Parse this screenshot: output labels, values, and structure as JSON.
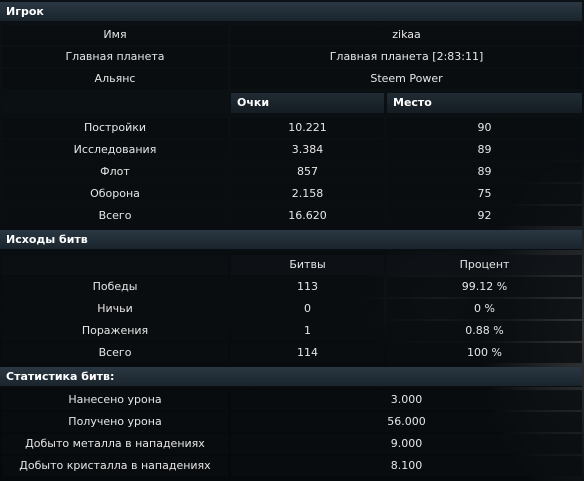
{
  "player_section": {
    "title": "Игрок",
    "rows": [
      {
        "label": "Имя",
        "value": "zikaa"
      },
      {
        "label": "Главная планета",
        "value": "Главная планета [2:83:11]"
      },
      {
        "label": "Альянс",
        "value": "Steem Power"
      }
    ]
  },
  "points_table": {
    "headers": {
      "points": "Очки",
      "place": "Место"
    },
    "rows": [
      {
        "label": "Постройки",
        "points": "10.221",
        "place": "90"
      },
      {
        "label": "Исследования",
        "points": "3.384",
        "place": "89"
      },
      {
        "label": "Флот",
        "points": "857",
        "place": "89"
      },
      {
        "label": "Оборона",
        "points": "2.158",
        "place": "75"
      },
      {
        "label": "Всего",
        "points": "16.620",
        "place": "92"
      }
    ]
  },
  "battle_outcomes": {
    "title": "Исходы битв",
    "headers": {
      "battles": "Битвы",
      "percent": "Процент"
    },
    "rows": [
      {
        "label": "Победы",
        "battles": "113",
        "percent": "99.12 %"
      },
      {
        "label": "Ничьи",
        "battles": "0",
        "percent": "0 %"
      },
      {
        "label": "Поражения",
        "battles": "1",
        "percent": "0.88 %"
      },
      {
        "label": "Всего",
        "battles": "114",
        "percent": "100 %"
      }
    ]
  },
  "battle_stats": {
    "title": "Статистика битв:",
    "rows": [
      {
        "label": "Нанесено урона",
        "value": "3.000"
      },
      {
        "label": "Получено урона",
        "value": "56.000"
      },
      {
        "label": "Добыто металла в нападениях",
        "value": "9.000"
      },
      {
        "label": "Добыто кристалла в нападениях",
        "value": "8.100"
      }
    ]
  }
}
